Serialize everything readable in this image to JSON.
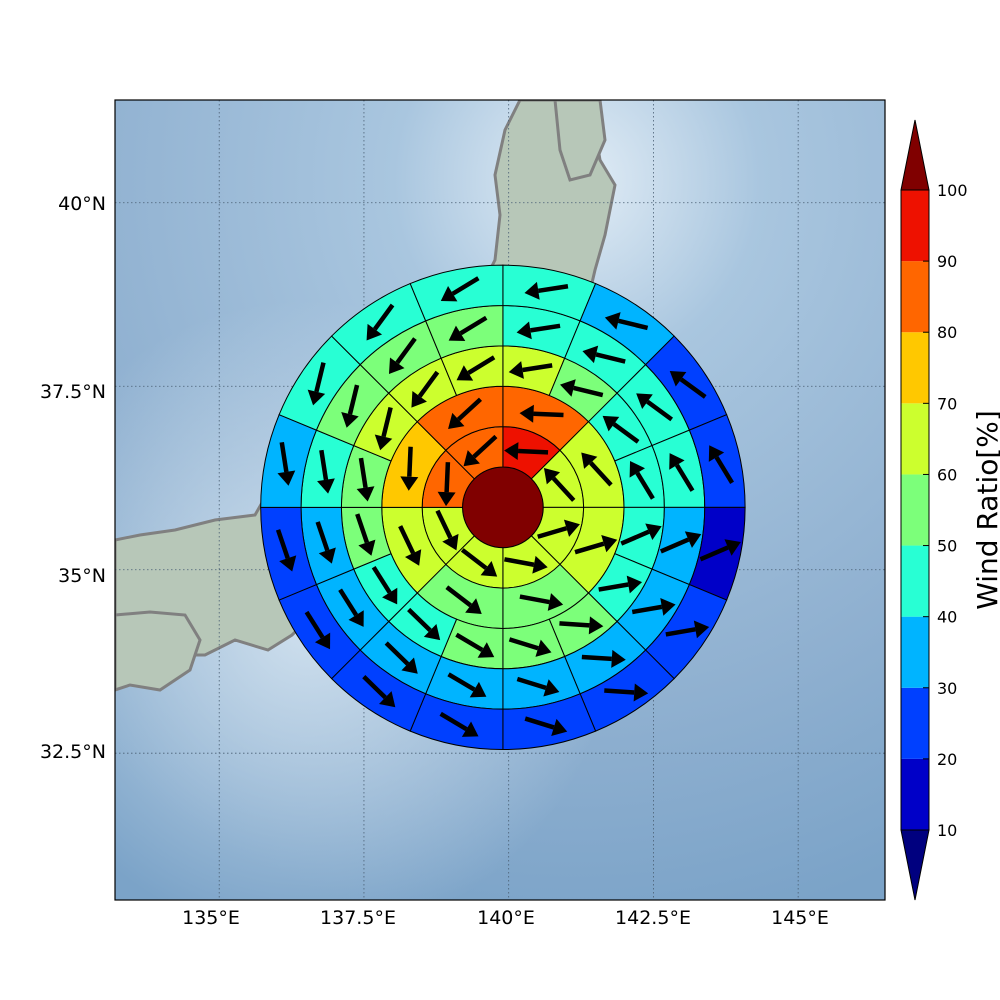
{
  "map": {
    "lon_ticks": [
      "135°E",
      "137.5°E",
      "140°E",
      "142.5°E",
      "145°E"
    ],
    "lat_ticks": [
      "40°N",
      "37.5°N",
      "35°N",
      "32.5°N"
    ]
  },
  "colorbar": {
    "label": "Wind Ratio[%]",
    "ticks": [
      "10",
      "20",
      "30",
      "40",
      "50",
      "60",
      "70",
      "80",
      "90",
      "100"
    ],
    "colors": [
      "#0000c8",
      "#0040ff",
      "#00b4ff",
      "#28ffd4",
      "#7cff7a",
      "#ccff2e",
      "#ffc800",
      "#ff6600",
      "#ee1100"
    ],
    "under_color": "#00007f",
    "over_color": "#800000"
  },
  "chart_data": {
    "type": "heatmap",
    "projection": "polar-grid over map",
    "x_range": [
      133.2,
      146.5
    ],
    "y_range": [
      30.5,
      41.4
    ],
    "center": [
      139.9,
      35.85
    ],
    "ring_radii_deg_lat": [
      0.55,
      1.1,
      1.65,
      2.2,
      2.75,
      3.3
    ],
    "rings": [
      {
        "sectors": 1,
        "values": [
          100
        ]
      },
      {
        "sectors": 8,
        "values": [
          95,
          65,
          65,
          65,
          65,
          65,
          85,
          85
        ]
      },
      {
        "sectors": 8,
        "values": [
          85,
          65,
          65,
          55,
          55,
          65,
          75,
          85
        ]
      },
      {
        "sectors": 16,
        "values": [
          65,
          55,
          45,
          45,
          45,
          45,
          55,
          55,
          55,
          45,
          45,
          55,
          55,
          65,
          65,
          65
        ]
      },
      {
        "sectors": 16,
        "values": [
          45,
          45,
          45,
          45,
          35,
          35,
          35,
          35,
          35,
          35,
          35,
          35,
          45,
          55,
          55,
          55
        ]
      },
      {
        "sectors": 16,
        "values": [
          45,
          35,
          25,
          25,
          15,
          25,
          25,
          25,
          25,
          25,
          25,
          25,
          35,
          45,
          45,
          45
        ]
      }
    ],
    "colorbar_range": [
      10,
      100
    ],
    "colorbar_label": "Wind Ratio[%]"
  }
}
